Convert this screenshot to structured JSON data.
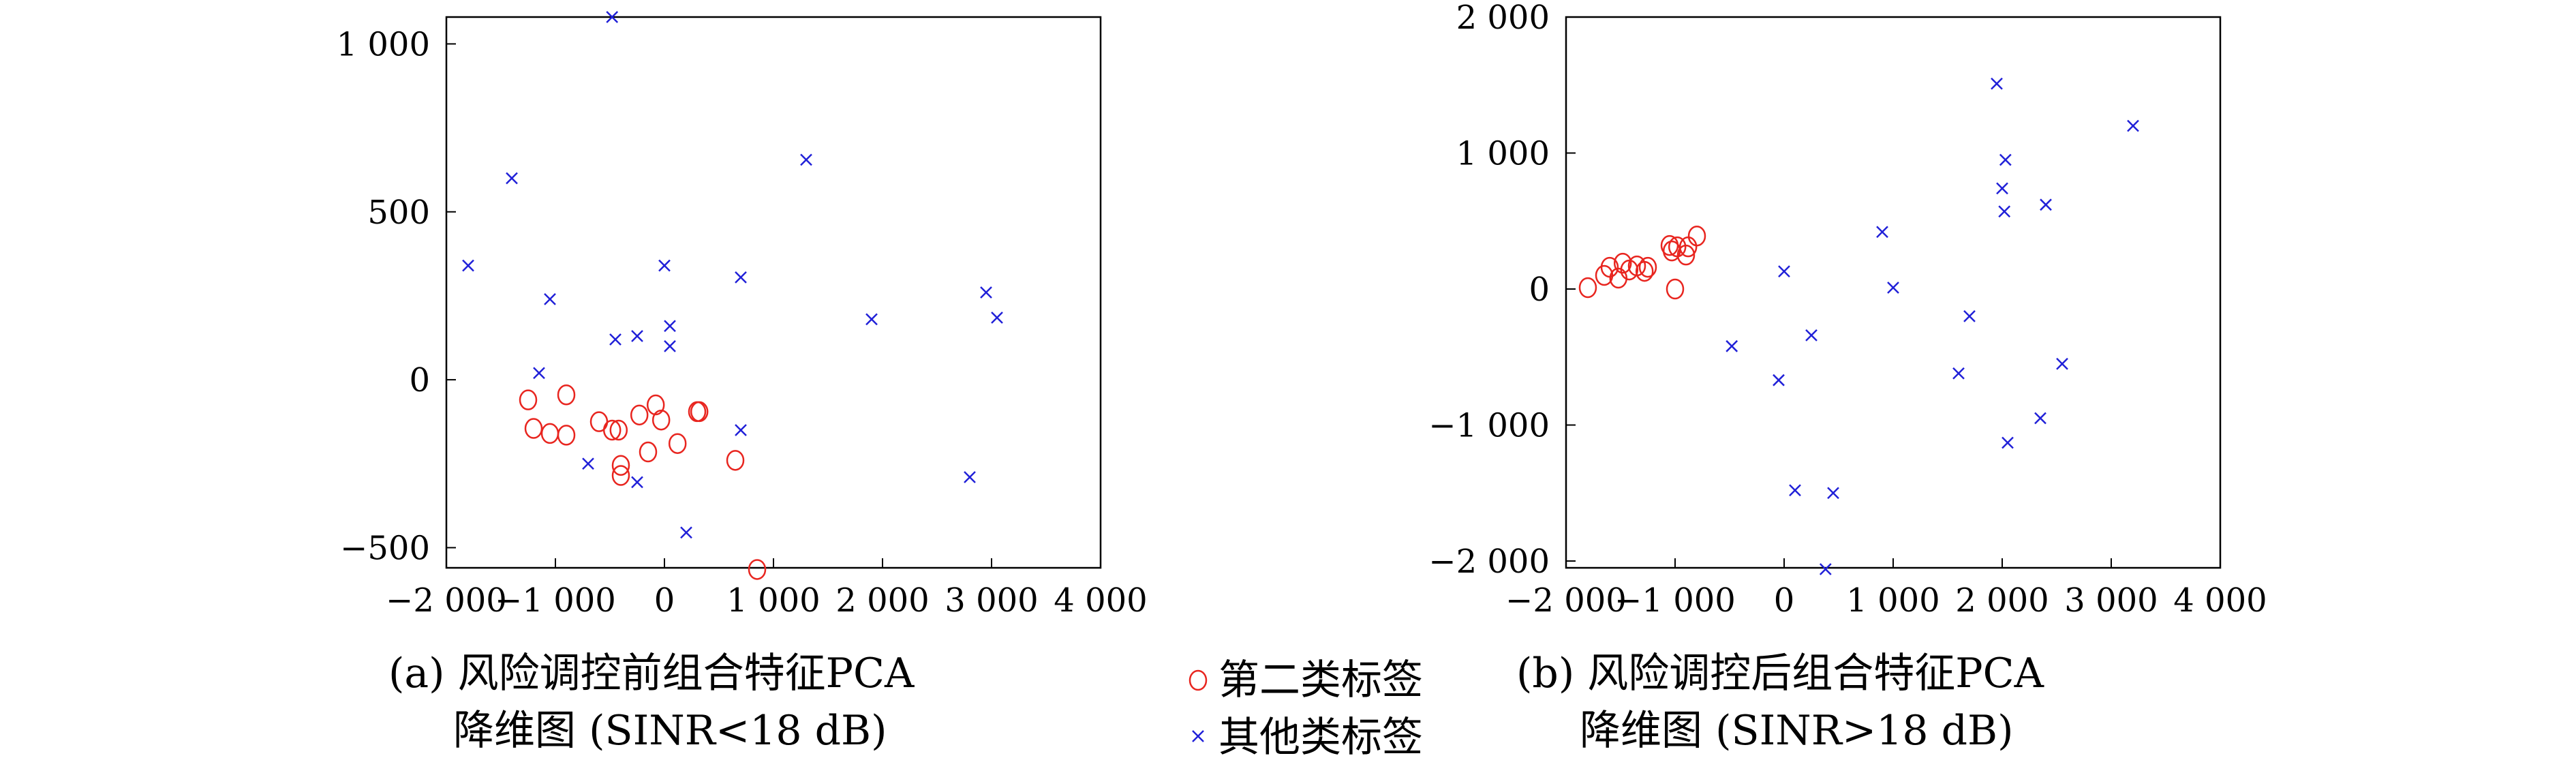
{
  "colors": {
    "class2": "#e8251f",
    "other": "#2020d8",
    "axis": "#000000"
  },
  "captions": {
    "a_line1": "(a) 风险调控前组合特征PCA",
    "a_line2": "降维图 (SINR<18 dB)",
    "b_line1": "(b) 风险调控后组合特征PCA",
    "b_line2": "降维图 (SINR>18 dB)"
  },
  "legend": {
    "circle_label": "第二类标签",
    "cross_label": "其他类标签"
  },
  "chart_data": [
    {
      "type": "scatter",
      "xlim": [
        -2000,
        4000
      ],
      "ylim": [
        -560,
        1080
      ],
      "xticks": [
        -2000,
        -1000,
        0,
        1000,
        2000,
        3000,
        4000
      ],
      "xtick_labels": [
        "−2 000",
        "−1 000",
        "0",
        "1 000",
        "2 000",
        "3 000",
        "4 000"
      ],
      "yticks": [
        -500,
        0,
        500,
        1000
      ],
      "ytick_labels": [
        "−500",
        "0",
        "500",
        "1 000"
      ],
      "series": [
        {
          "name": "第二类标签",
          "marker": "circle",
          "points": [
            [
              -1250,
              -60
            ],
            [
              -1200,
              -145
            ],
            [
              -1050,
              -160
            ],
            [
              -900,
              -45
            ],
            [
              -900,
              -165
            ],
            [
              -600,
              -125
            ],
            [
              -480,
              -150
            ],
            [
              -420,
              -150
            ],
            [
              -400,
              -255
            ],
            [
              -400,
              -285
            ],
            [
              -230,
              -105
            ],
            [
              -150,
              -215
            ],
            [
              -80,
              -75
            ],
            [
              -30,
              -120
            ],
            [
              120,
              -190
            ],
            [
              300,
              -95
            ],
            [
              320,
              -95
            ],
            [
              650,
              -240
            ],
            [
              850,
              -565
            ]
          ]
        },
        {
          "name": "其他类标签",
          "marker": "cross",
          "points": [
            [
              -480,
              1080
            ],
            [
              -1800,
              340
            ],
            [
              -1400,
              600
            ],
            [
              -1050,
              240
            ],
            [
              -1150,
              20
            ],
            [
              -700,
              -250
            ],
            [
              -450,
              120
            ],
            [
              -250,
              130
            ],
            [
              -250,
              -305
            ],
            [
              0,
              340
            ],
            [
              50,
              160
            ],
            [
              50,
              100
            ],
            [
              200,
              -455
            ],
            [
              700,
              305
            ],
            [
              700,
              -150
            ],
            [
              1300,
              655
            ],
            [
              1900,
              180
            ],
            [
              2800,
              -290
            ],
            [
              2950,
              260
            ],
            [
              3050,
              185
            ]
          ]
        }
      ]
    },
    {
      "type": "scatter",
      "xlim": [
        -2000,
        4000
      ],
      "ylim": [
        -2050,
        2000
      ],
      "xticks": [
        -2000,
        -1000,
        0,
        1000,
        2000,
        3000,
        4000
      ],
      "xtick_labels": [
        "−2 000",
        "−1 000",
        "0",
        "1 000",
        "2 000",
        "3 000",
        "4 000"
      ],
      "yticks": [
        -2000,
        -1000,
        0,
        1000,
        2000
      ],
      "ytick_labels": [
        "−2 000",
        "−1 000",
        "0",
        "1 000",
        "2 000"
      ],
      "series": [
        {
          "name": "第二类标签",
          "marker": "circle",
          "points": [
            [
              -1800,
              10
            ],
            [
              -1650,
              100
            ],
            [
              -1600,
              160
            ],
            [
              -1520,
              80
            ],
            [
              -1480,
              190
            ],
            [
              -1420,
              140
            ],
            [
              -1350,
              170
            ],
            [
              -1280,
              130
            ],
            [
              -1250,
              160
            ],
            [
              -1050,
              320
            ],
            [
              -1030,
              280
            ],
            [
              -1000,
              0
            ],
            [
              -980,
              310
            ],
            [
              -900,
              250
            ],
            [
              -880,
              310
            ],
            [
              -800,
              390
            ]
          ]
        },
        {
          "name": "其他类标签",
          "marker": "cross",
          "points": [
            [
              -480,
              -420
            ],
            [
              -50,
              -670
            ],
            [
              0,
              130
            ],
            [
              100,
              -1480
            ],
            [
              250,
              -340
            ],
            [
              380,
              -2060
            ],
            [
              450,
              -1500
            ],
            [
              900,
              420
            ],
            [
              1000,
              10
            ],
            [
              1600,
              -620
            ],
            [
              1700,
              -200
            ],
            [
              1950,
              1510
            ],
            [
              2000,
              740
            ],
            [
              2020,
              570
            ],
            [
              2030,
              950
            ],
            [
              2050,
              -1130
            ],
            [
              2350,
              -950
            ],
            [
              2400,
              620
            ],
            [
              2550,
              -550
            ],
            [
              3200,
              1200
            ]
          ]
        }
      ]
    }
  ]
}
